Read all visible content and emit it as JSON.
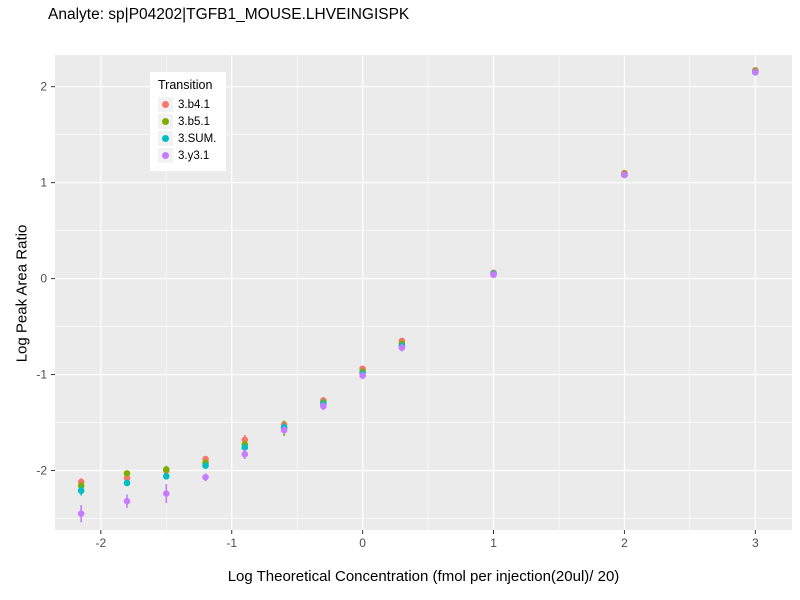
{
  "title": "Analyte: sp|P04202|TGFB1_MOUSE.LHVEINGISPK",
  "chart_data": {
    "type": "scatter",
    "title": "Analyte: sp|P04202|TGFB1_MOUSE.LHVEINGISPK",
    "xlabel": "Log Theoretical Concentration (fmol per injection(20ul)/ 20)",
    "ylabel": "Log Peak Area Ratio",
    "legend_title": "Transition",
    "legend_position": "inside-top-left",
    "grid": true,
    "panel_bg": "#EBEBEB",
    "grid_color": "#FFFFFF",
    "xlim": [
      -2.35,
      3.28
    ],
    "ylim": [
      -2.62,
      2.33
    ],
    "x_ticks": [
      -2,
      -1,
      0,
      1,
      2,
      3
    ],
    "y_ticks": [
      -2,
      -1,
      0,
      1,
      2
    ],
    "x_minor_ticks": [
      -1.5,
      -0.5,
      0.5,
      1.5,
      2.5
    ],
    "y_minor_ticks": [
      -2.5,
      -1.5,
      -0.5,
      0.5,
      1.5
    ],
    "x": [
      -2.15,
      -1.8,
      -1.5,
      -1.2,
      -0.9,
      -0.6,
      -0.3,
      0,
      0.3,
      1,
      2,
      3
    ],
    "series": [
      {
        "name": "3.b4.1",
        "color": "#F8766D",
        "values": [
          -2.12,
          -2.08,
          -2.0,
          -1.88,
          -1.68,
          -1.52,
          -1.27,
          -0.94,
          -0.65,
          0.06,
          1.1,
          2.17
        ],
        "errors": [
          0.04,
          0.03,
          0.03,
          0.03,
          0.05,
          0.03,
          0.03,
          0.03,
          0.03,
          0.01,
          0.01,
          0.01
        ]
      },
      {
        "name": "3.b5.1",
        "color": "#7CAE00",
        "values": [
          -2.16,
          -2.03,
          -1.99,
          -1.92,
          -1.73,
          -1.56,
          -1.29,
          -0.97,
          -0.68,
          0.05,
          1.09,
          2.16
        ],
        "errors": [
          0.04,
          0.03,
          0.04,
          0.03,
          0.04,
          0.08,
          0.03,
          0.03,
          0.03,
          0.01,
          0.01,
          0.01
        ]
      },
      {
        "name": "3.SUM.",
        "color": "#00BFC4",
        "values": [
          -2.21,
          -2.13,
          -2.06,
          -1.95,
          -1.76,
          -1.55,
          -1.31,
          -0.99,
          -0.7,
          0.05,
          1.08,
          2.15
        ],
        "errors": [
          0.05,
          0.03,
          0.03,
          0.03,
          0.04,
          0.04,
          0.05,
          0.03,
          0.03,
          0.01,
          0.01,
          0.01
        ]
      },
      {
        "name": "3.y3.1",
        "color": "#C77CFF",
        "values": [
          -2.45,
          -2.32,
          -2.24,
          -2.07,
          -1.83,
          -1.58,
          -1.33,
          -1.01,
          -0.72,
          0.04,
          1.08,
          2.15
        ],
        "errors": [
          0.09,
          0.07,
          0.1,
          0.04,
          0.05,
          0.04,
          0.04,
          0.04,
          0.04,
          0.01,
          0.01,
          0.01
        ]
      }
    ]
  }
}
